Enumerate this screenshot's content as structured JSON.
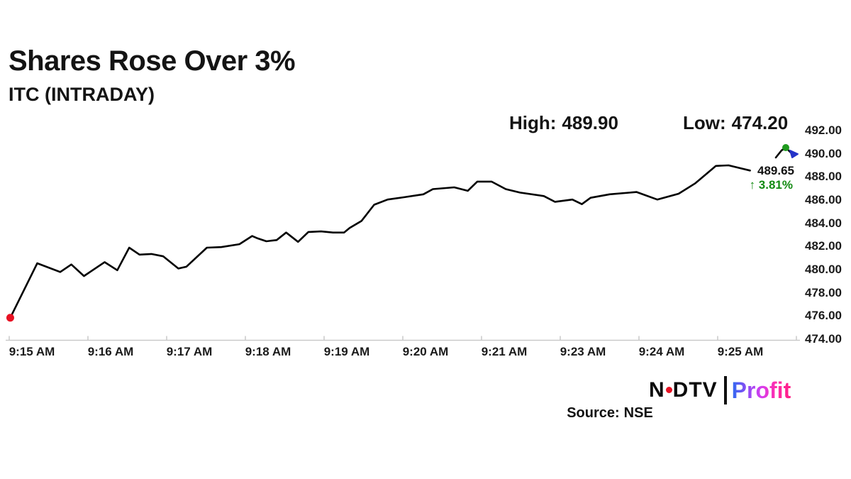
{
  "header": {
    "title": "Shares Rose Over 3%",
    "subtitle": "ITC (INTRADAY)"
  },
  "stats": {
    "high_label": "High:",
    "high_value": "489.90",
    "low_label": "Low:",
    "low_value": "474.20"
  },
  "last_quote": {
    "price": "489.65",
    "change_arrow": "↑",
    "change_percent": "3.81%"
  },
  "footer": {
    "source_label": "Source:",
    "source_value": "NSE",
    "brand_ndtv_left": "N",
    "brand_ndtv_right": "DTV",
    "brand_profit": "Profit"
  },
  "palette": {
    "line": "#000000",
    "axis": "#c9c9c9",
    "text": "#1a1a1a",
    "green": "#128a12",
    "red": "#e81123",
    "blue": "#2432c8",
    "icon_green": "#1f9a1f",
    "profit_gradient": [
      "#2e6bf0",
      "#8a4cf5",
      "#d63df0",
      "#ff2daa",
      "#ff1f86"
    ]
  },
  "chart_data": {
    "type": "line",
    "title": "ITC (INTRADAY)",
    "xlabel": "",
    "ylabel": "",
    "x_ticks": [
      "9:15 AM",
      "9:16 AM",
      "9:17 AM",
      "9:18 AM",
      "9:19 AM",
      "9:20 AM",
      "9:21 AM",
      "9:23 AM",
      "9:24 AM",
      "9:25 AM"
    ],
    "y_ticks": [
      "492.00",
      "490.00",
      "488.00",
      "486.00",
      "484.00",
      "482.00",
      "480.00",
      "478.00",
      "476.00",
      "474.00"
    ],
    "y_range": [
      474,
      492
    ],
    "grid": false,
    "legend": false,
    "high": 489.9,
    "low": 474.2,
    "last": 489.65,
    "change_pct": 3.81,
    "start_marker": "red-dot",
    "points": [
      {
        "x": 0.004,
        "price": 475.85
      },
      {
        "x": 0.038,
        "price": 480.55
      },
      {
        "x": 0.067,
        "price": 479.8
      },
      {
        "x": 0.081,
        "price": 480.45
      },
      {
        "x": 0.097,
        "price": 479.45
      },
      {
        "x": 0.123,
        "price": 480.65
      },
      {
        "x": 0.139,
        "price": 479.95
      },
      {
        "x": 0.154,
        "price": 481.9
      },
      {
        "x": 0.167,
        "price": 481.3
      },
      {
        "x": 0.182,
        "price": 481.35
      },
      {
        "x": 0.197,
        "price": 481.15
      },
      {
        "x": 0.216,
        "price": 480.1
      },
      {
        "x": 0.226,
        "price": 480.25
      },
      {
        "x": 0.252,
        "price": 481.9
      },
      {
        "x": 0.27,
        "price": 481.95
      },
      {
        "x": 0.293,
        "price": 482.2
      },
      {
        "x": 0.309,
        "price": 482.9
      },
      {
        "x": 0.316,
        "price": 482.7
      },
      {
        "x": 0.327,
        "price": 482.45
      },
      {
        "x": 0.34,
        "price": 482.55
      },
      {
        "x": 0.352,
        "price": 483.2
      },
      {
        "x": 0.367,
        "price": 482.4
      },
      {
        "x": 0.38,
        "price": 483.25
      },
      {
        "x": 0.396,
        "price": 483.3
      },
      {
        "x": 0.411,
        "price": 483.2
      },
      {
        "x": 0.425,
        "price": 483.2
      },
      {
        "x": 0.432,
        "price": 483.6
      },
      {
        "x": 0.447,
        "price": 484.2
      },
      {
        "x": 0.463,
        "price": 485.6
      },
      {
        "x": 0.48,
        "price": 486.05
      },
      {
        "x": 0.501,
        "price": 486.25
      },
      {
        "x": 0.525,
        "price": 486.5
      },
      {
        "x": 0.537,
        "price": 486.95
      },
      {
        "x": 0.564,
        "price": 487.1
      },
      {
        "x": 0.581,
        "price": 486.8
      },
      {
        "x": 0.593,
        "price": 487.6
      },
      {
        "x": 0.611,
        "price": 487.6
      },
      {
        "x": 0.629,
        "price": 486.95
      },
      {
        "x": 0.647,
        "price": 486.65
      },
      {
        "x": 0.677,
        "price": 486.35
      },
      {
        "x": 0.691,
        "price": 485.85
      },
      {
        "x": 0.713,
        "price": 486.05
      },
      {
        "x": 0.725,
        "price": 485.65
      },
      {
        "x": 0.736,
        "price": 486.2
      },
      {
        "x": 0.76,
        "price": 486.5
      },
      {
        "x": 0.794,
        "price": 486.7
      },
      {
        "x": 0.82,
        "price": 486.05
      },
      {
        "x": 0.847,
        "price": 486.55
      },
      {
        "x": 0.868,
        "price": 487.45
      },
      {
        "x": 0.894,
        "price": 488.95
      },
      {
        "x": 0.91,
        "price": 489.0
      },
      {
        "x": 0.928,
        "price": 488.7
      },
      {
        "x": 0.937,
        "price": 488.55
      }
    ]
  }
}
